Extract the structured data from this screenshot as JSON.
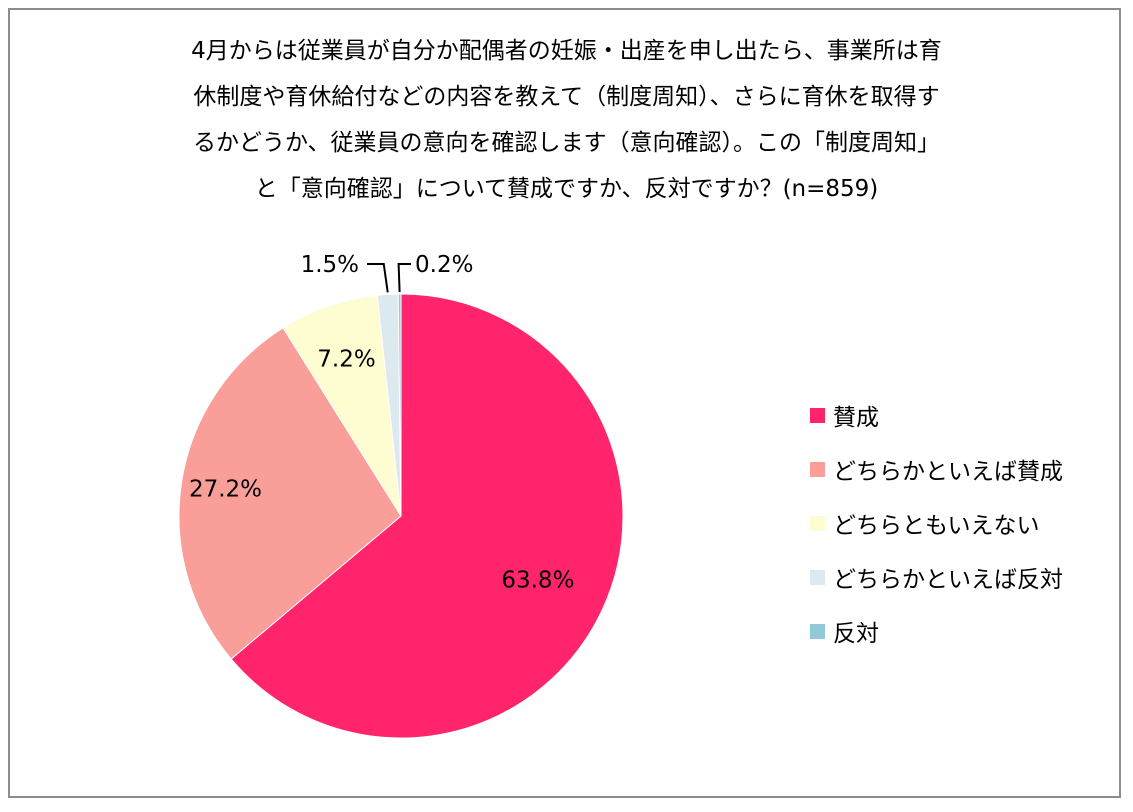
{
  "title_lines": [
    "4月からは従業員が自分か配偶者の妊娠・出産を申し出たら、事業所は育",
    "休制度や育休給付などの内容を教えて（制度周知）、さらに育休を取得す",
    "るかどうか、従業員の意向を確認します（意向確認）。この「制度周知」",
    "と「意向確認」について賛成ですか、反対ですか？(n=859)"
  ],
  "chart_data": {
    "type": "pie",
    "title": "4月からは従業員が自分か配偶者の妊娠・出産を申し出たら、事業所は育休制度や育休給付などの内容を教えて（制度周知）、さらに育休を取得するかどうか、従業員の意向を確認します（意向確認）。この「制度周知」と「意向確認」について賛成ですか、反対ですか？(n=859)",
    "categories": [
      "賛成",
      "どちらかといえば賛成",
      "どちらともいえない",
      "どちらかといえば反対",
      "反対"
    ],
    "values": [
      63.8,
      27.2,
      7.2,
      1.5,
      0.2
    ],
    "labels": [
      "63.8%",
      "27.2%",
      "7.2%",
      "1.5%",
      "0.2%"
    ],
    "colors": [
      "#ff246b",
      "#fa9e9a",
      "#fefdd2",
      "#dce9ef",
      "#92c9d8"
    ],
    "legend_position": "right",
    "start_angle": "12 o'clock",
    "direction": "clockwise"
  }
}
